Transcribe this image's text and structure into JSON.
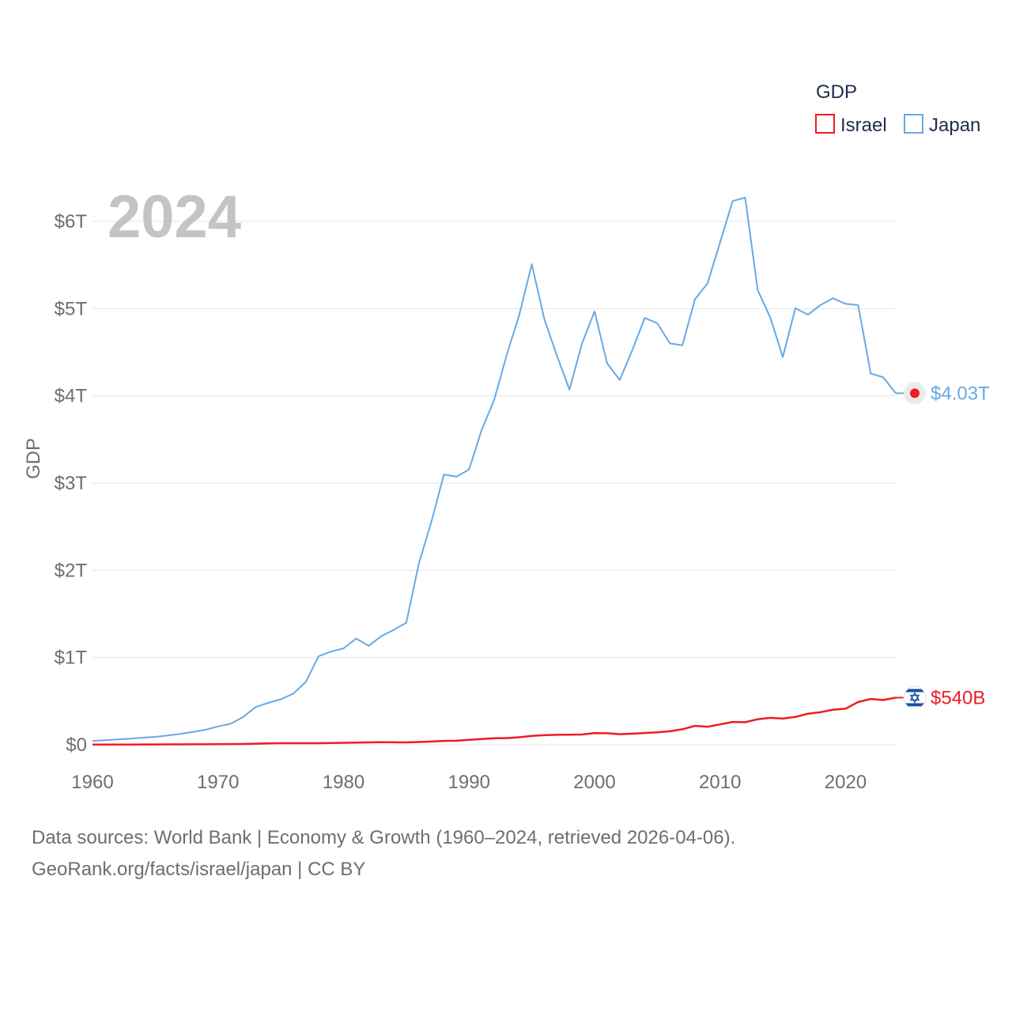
{
  "chart_data": {
    "type": "line",
    "year_label": "2024",
    "ylabel": "GDP",
    "legend_title": "GDP",
    "xlim": [
      1960,
      2024
    ],
    "ylim": [
      0,
      6
    ],
    "x_ticks": [
      1960,
      1970,
      1980,
      1990,
      2000,
      2010,
      2020
    ],
    "y_ticks": [
      {
        "value": 0,
        "label": "$0"
      },
      {
        "value": 1,
        "label": "$1T"
      },
      {
        "value": 2,
        "label": "$2T"
      },
      {
        "value": 3,
        "label": "$3T"
      },
      {
        "value": 4,
        "label": "$4T"
      },
      {
        "value": 5,
        "label": "$5T"
      },
      {
        "value": 6,
        "label": "$6T"
      }
    ],
    "units": "trillion USD",
    "x": [
      1960,
      1961,
      1962,
      1963,
      1964,
      1965,
      1966,
      1967,
      1968,
      1969,
      1970,
      1971,
      1972,
      1973,
      1974,
      1975,
      1976,
      1977,
      1978,
      1979,
      1980,
      1981,
      1982,
      1983,
      1984,
      1985,
      1986,
      1987,
      1988,
      1989,
      1990,
      1991,
      1992,
      1993,
      1994,
      1995,
      1996,
      1997,
      1998,
      1999,
      2000,
      2001,
      2002,
      2003,
      2004,
      2005,
      2006,
      2007,
      2008,
      2009,
      2010,
      2011,
      2012,
      2013,
      2014,
      2015,
      2016,
      2017,
      2018,
      2019,
      2020,
      2021,
      2022,
      2023,
      2024
    ],
    "series": [
      {
        "name": "Israel",
        "color": "#ee1c25",
        "end_label": "$540B",
        "values": [
          0.0021,
          0.0024,
          0.0026,
          0.003,
          0.0035,
          0.004,
          0.0043,
          0.0044,
          0.0051,
          0.0058,
          0.0067,
          0.0078,
          0.0091,
          0.0125,
          0.016,
          0.018,
          0.018,
          0.0182,
          0.018,
          0.021,
          0.0231,
          0.0252,
          0.0273,
          0.029,
          0.028,
          0.027,
          0.032,
          0.037,
          0.044,
          0.046,
          0.056,
          0.065,
          0.074,
          0.076,
          0.086,
          0.102,
          0.11,
          0.114,
          0.115,
          0.118,
          0.133,
          0.132,
          0.121,
          0.127,
          0.135,
          0.143,
          0.155,
          0.178,
          0.217,
          0.207,
          0.234,
          0.262,
          0.258,
          0.293,
          0.309,
          0.3,
          0.319,
          0.356,
          0.373,
          0.402,
          0.413,
          0.49,
          0.525,
          0.513,
          0.54
        ]
      },
      {
        "name": "Japan",
        "color": "#67a9e4",
        "end_label": "$4.03T",
        "values": [
          0.044,
          0.053,
          0.061,
          0.07,
          0.082,
          0.091,
          0.106,
          0.124,
          0.147,
          0.172,
          0.21,
          0.24,
          0.318,
          0.432,
          0.48,
          0.521,
          0.586,
          0.721,
          1.014,
          1.068,
          1.105,
          1.218,
          1.134,
          1.244,
          1.318,
          1.399,
          2.079,
          2.556,
          3.099,
          3.073,
          3.155,
          3.606,
          3.953,
          4.468,
          4.929,
          5.509,
          4.88,
          4.46,
          4.071,
          4.599,
          4.968,
          4.374,
          4.182,
          4.52,
          4.893,
          4.831,
          4.601,
          4.58,
          5.106,
          5.289,
          5.759,
          6.233,
          6.272,
          5.212,
          4.897,
          4.444,
          5.004,
          4.931,
          5.041,
          5.118,
          5.055,
          5.04,
          4.256,
          4.213,
          4.03
        ]
      }
    ]
  },
  "footer": {
    "line1": "Data sources: World Bank | Economy & Growth (1960–2024, retrieved 2026-04-06).",
    "line2": "GeoRank.org/facts/israel/japan | CC BY"
  },
  "icons": {
    "israel_flag": "israel-flag-icon",
    "japan_flag": "japan-flag-icon"
  }
}
